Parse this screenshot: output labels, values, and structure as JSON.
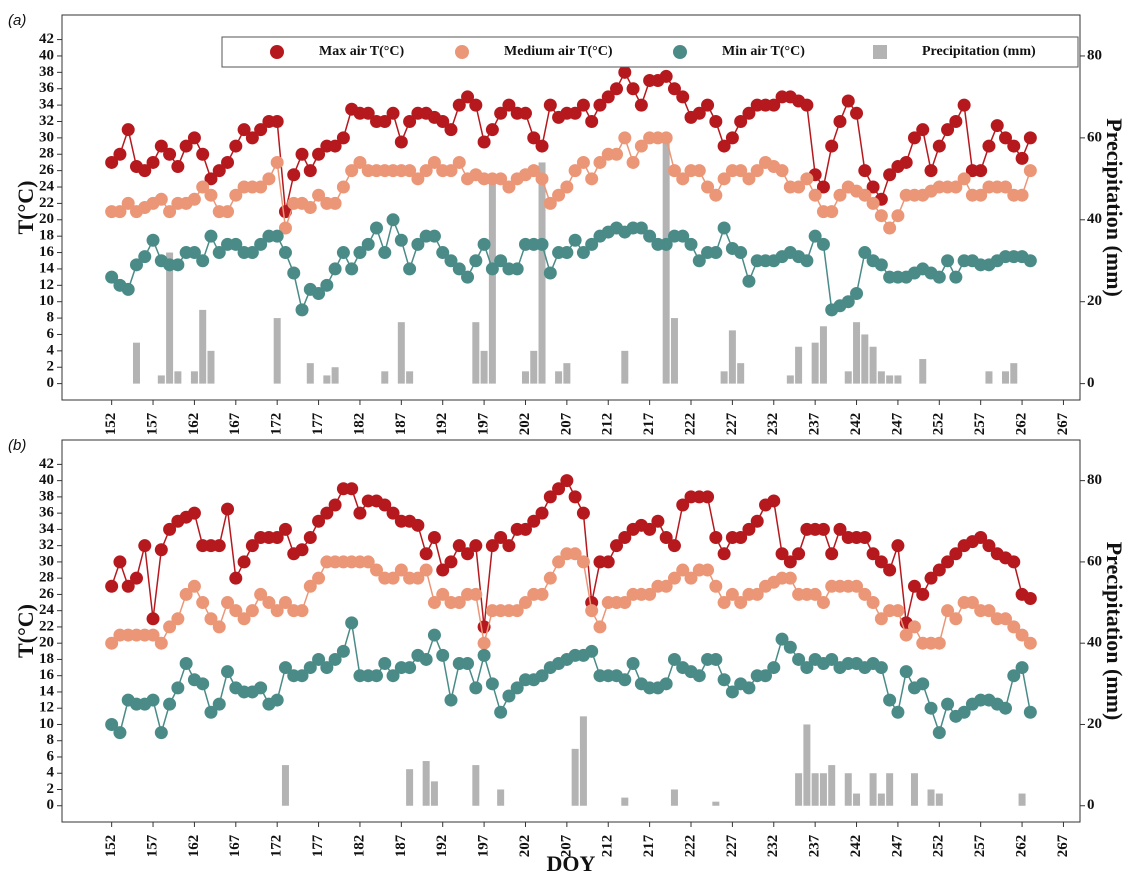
{
  "chart_data": [
    {
      "type": "combo",
      "label": "(a)",
      "ylabel": "T(°C)",
      "y2label": "Precipitation (mm)",
      "xlim": [
        146,
        269
      ],
      "xticks": [
        152,
        157,
        162,
        167,
        172,
        177,
        182,
        187,
        192,
        197,
        202,
        207,
        212,
        217,
        222,
        227,
        232,
        237,
        242,
        247,
        252,
        257,
        262,
        267
      ],
      "ylim": [
        -2,
        45
      ],
      "yticks": [
        0,
        2,
        4,
        6,
        8,
        10,
        12,
        14,
        16,
        18,
        20,
        22,
        24,
        26,
        28,
        30,
        32,
        34,
        36,
        38,
        40,
        42
      ],
      "y2lim": [
        -4,
        90
      ],
      "y2ticks": [
        0,
        20,
        40,
        60,
        80
      ],
      "legend": "top-right",
      "x": [
        152,
        153,
        154,
        155,
        156,
        157,
        158,
        159,
        160,
        161,
        162,
        163,
        164,
        165,
        166,
        167,
        168,
        169,
        170,
        171,
        172,
        173,
        174,
        175,
        176,
        177,
        178,
        179,
        180,
        181,
        182,
        183,
        184,
        185,
        186,
        187,
        188,
        189,
        190,
        191,
        192,
        193,
        194,
        195,
        196,
        197,
        198,
        199,
        200,
        201,
        202,
        203,
        204,
        205,
        206,
        207,
        208,
        209,
        210,
        211,
        212,
        213,
        214,
        215,
        216,
        217,
        218,
        219,
        220,
        221,
        222,
        223,
        224,
        225,
        226,
        227,
        228,
        229,
        230,
        231,
        232,
        233,
        234,
        235,
        236,
        237,
        238,
        239,
        240,
        241,
        242,
        243,
        244,
        245,
        246,
        247,
        248,
        249,
        250,
        251,
        252,
        253,
        254,
        255,
        256,
        257,
        258,
        259,
        260,
        261,
        262,
        263
      ],
      "series": [
        {
          "name": "Max air T(°C)",
          "color": "#b5191e",
          "values": [
            27,
            28,
            31,
            26.5,
            26,
            27,
            29,
            28,
            26.5,
            29,
            30,
            28,
            25,
            26,
            27,
            29,
            31,
            30,
            31,
            32,
            32,
            21,
            25.5,
            28,
            26,
            28,
            29,
            29,
            30,
            33.5,
            33,
            33,
            32,
            32,
            33,
            29.5,
            32,
            33,
            33,
            32.5,
            32,
            31,
            34,
            35,
            34,
            29.5,
            31,
            33,
            34,
            33,
            33,
            30,
            29,
            34,
            32.5,
            33,
            33,
            34,
            32,
            34,
            35,
            36,
            38,
            36,
            34,
            37,
            37,
            37.5,
            36,
            35,
            32.5,
            33,
            34,
            32,
            29,
            30,
            32,
            33,
            34,
            34,
            34,
            35,
            35,
            34.5,
            34,
            25.5,
            24,
            29,
            32,
            34.5,
            33,
            26,
            24,
            22.5,
            25.5,
            26.5,
            27,
            30,
            31,
            26,
            29,
            31,
            32,
            34,
            26,
            26,
            29,
            31.5,
            30,
            29,
            27.5,
            30
          ]
        },
        {
          "name": "Medium air T(°C)",
          "color": "#eb9677",
          "values": [
            21,
            21,
            22,
            21,
            21.5,
            22,
            22.5,
            21,
            22,
            22,
            22.5,
            24,
            23,
            21,
            21,
            23,
            24,
            24,
            24,
            25,
            27,
            19,
            22,
            22,
            21.5,
            23,
            22,
            22,
            24,
            26,
            27,
            26,
            26,
            26,
            26,
            26,
            26,
            25,
            26,
            27,
            26,
            26,
            27,
            25,
            25.5,
            25,
            25,
            25,
            24,
            25,
            25.5,
            26,
            25,
            22,
            23,
            24,
            26,
            27,
            25,
            27,
            28,
            28,
            30,
            27,
            29,
            30,
            30,
            30,
            26,
            25,
            26,
            26,
            24,
            23,
            25,
            26,
            26,
            25,
            26,
            27,
            26.5,
            26,
            24,
            24,
            25,
            23,
            21,
            21,
            23,
            24,
            23.5,
            23,
            22,
            20.5,
            19,
            20.5,
            23,
            23,
            23,
            23.5,
            24,
            24,
            24,
            25,
            23,
            23,
            24,
            24,
            24,
            23,
            23,
            26
          ]
        },
        {
          "name": "Min air T(°C)",
          "color": "#4a8b88",
          "values": [
            13,
            12,
            11.5,
            14.5,
            15.5,
            17.5,
            15,
            14.5,
            14.5,
            16,
            16,
            15,
            18,
            16,
            17,
            17,
            16,
            16,
            17,
            18,
            18,
            16,
            13.5,
            9,
            11.5,
            11,
            12,
            14,
            16,
            14,
            16,
            17,
            19,
            16,
            20,
            17.5,
            14,
            17,
            18,
            18,
            16,
            15,
            14,
            13,
            15,
            17,
            14,
            15,
            14,
            14,
            17,
            17,
            17,
            13.5,
            16,
            16,
            17.5,
            16,
            17,
            18,
            18.5,
            19,
            18.5,
            19,
            19,
            18,
            17,
            17,
            18,
            18,
            17,
            15,
            16,
            16,
            19,
            16.5,
            16,
            12.5,
            15,
            15,
            15,
            15.5,
            16,
            15.5,
            15,
            18,
            17,
            9,
            9.5,
            10,
            11,
            16,
            15,
            14.5,
            13,
            13,
            13,
            13.5,
            14,
            13.5,
            13,
            15,
            13,
            15,
            15,
            14.5,
            14.5,
            15,
            15.5,
            15.5,
            15.5,
            15
          ]
        },
        {
          "name": "Precipitation (mm)",
          "color": "#b3b3b3",
          "axis": "y2",
          "x": [
            155,
            158,
            159,
            160,
            162,
            163,
            164,
            172,
            176,
            178,
            179,
            185,
            187,
            188,
            196,
            197,
            198,
            202,
            203,
            204,
            206,
            207,
            214,
            219,
            220,
            226,
            227,
            228,
            234,
            235,
            237,
            238,
            241,
            242,
            243,
            244,
            245,
            246,
            247,
            250,
            258,
            260,
            261
          ],
          "values": [
            10,
            2,
            32,
            3,
            3,
            18,
            8,
            16,
            5,
            2,
            4,
            3,
            15,
            3,
            15,
            8,
            50,
            3,
            8,
            54,
            3,
            5,
            8,
            60,
            16,
            3,
            13,
            5,
            2,
            9,
            10,
            14,
            3,
            15,
            12,
            9,
            3,
            2,
            2,
            6,
            3,
            3,
            5
          ]
        }
      ]
    },
    {
      "type": "combo",
      "label": "(b)",
      "ylabel": "T(°C)",
      "y2label": "Precipitation (mm)",
      "xlabel": "DOY",
      "xlim": [
        146,
        269
      ],
      "xticks": [
        152,
        157,
        162,
        167,
        172,
        177,
        182,
        187,
        192,
        197,
        202,
        207,
        212,
        217,
        222,
        227,
        232,
        237,
        242,
        247,
        252,
        257,
        262,
        267
      ],
      "ylim": [
        -2,
        45
      ],
      "yticks": [
        0,
        2,
        4,
        6,
        8,
        10,
        12,
        14,
        16,
        18,
        20,
        22,
        24,
        26,
        28,
        30,
        32,
        34,
        36,
        38,
        40,
        42
      ],
      "y2lim": [
        -4,
        90
      ],
      "y2ticks": [
        0,
        20,
        40,
        60,
        80
      ],
      "x": [
        152,
        153,
        154,
        155,
        156,
        157,
        158,
        159,
        160,
        161,
        162,
        163,
        164,
        165,
        166,
        167,
        168,
        169,
        170,
        171,
        172,
        173,
        174,
        175,
        176,
        177,
        178,
        179,
        180,
        181,
        182,
        183,
        184,
        185,
        186,
        187,
        188,
        189,
        190,
        191,
        192,
        193,
        194,
        195,
        196,
        197,
        198,
        199,
        200,
        201,
        202,
        203,
        204,
        205,
        206,
        207,
        208,
        209,
        210,
        211,
        212,
        213,
        214,
        215,
        216,
        217,
        218,
        219,
        220,
        221,
        222,
        223,
        224,
        225,
        226,
        227,
        228,
        229,
        230,
        231,
        232,
        233,
        234,
        235,
        236,
        237,
        238,
        239,
        240,
        241,
        242,
        243,
        244,
        245,
        246,
        247,
        248,
        249,
        250,
        251,
        252,
        253,
        254,
        255,
        256,
        257,
        258,
        259,
        260,
        261,
        262,
        263
      ],
      "series": [
        {
          "color": "#b5191e",
          "values": [
            27,
            30,
            27,
            28,
            32,
            23,
            31.5,
            34,
            35,
            35.5,
            36,
            32,
            32,
            32,
            36.5,
            28,
            30,
            32,
            33,
            33,
            33,
            34,
            31,
            31.5,
            33,
            35,
            36,
            37,
            39,
            39,
            36,
            37.5,
            37.5,
            37,
            36,
            35,
            35,
            34.5,
            31,
            33,
            29,
            30,
            32,
            31,
            32,
            22,
            32,
            33,
            32,
            34,
            34,
            35,
            36,
            38,
            39,
            40,
            38,
            36,
            25,
            30,
            30,
            32,
            33,
            34,
            34.5,
            34,
            35,
            33,
            32,
            37,
            38,
            38,
            38,
            33,
            31,
            33,
            33,
            34,
            35,
            37,
            37.5,
            31,
            30,
            31,
            34,
            34,
            34,
            31,
            34,
            33,
            33,
            33,
            31,
            30,
            29,
            32,
            22.5,
            27,
            26,
            28,
            29,
            30,
            31,
            32,
            32.5,
            33,
            32,
            31,
            30.5,
            30,
            26,
            25.5
          ]
        },
        {
          "color": "#eb9677",
          "values": [
            20,
            21,
            21,
            21,
            21,
            21,
            20,
            22,
            23,
            26,
            27,
            25,
            23,
            22,
            25,
            24,
            23,
            24,
            26,
            25,
            24,
            25,
            24,
            24,
            27,
            28,
            30,
            30,
            30,
            30,
            30,
            30,
            29,
            28,
            28,
            29,
            28,
            28,
            29,
            25,
            26,
            25,
            25,
            26,
            26,
            20,
            24,
            24,
            24,
            24,
            25,
            26,
            26,
            28,
            30,
            31,
            31,
            30,
            24,
            22,
            25,
            25,
            25,
            26,
            26,
            26,
            27,
            27,
            28,
            29,
            28,
            29,
            29,
            27,
            25,
            26,
            25,
            26,
            26,
            27,
            27.5,
            28,
            28,
            26,
            26,
            26,
            25,
            27,
            27,
            27,
            27,
            26,
            25,
            23,
            24,
            24,
            21,
            22,
            20,
            20,
            20,
            24,
            23,
            25,
            25,
            24,
            24,
            23,
            23,
            22,
            21,
            20
          ]
        },
        {
          "color": "#4a8b88",
          "values": [
            10,
            9,
            13,
            12.5,
            12.5,
            13,
            9,
            12.5,
            14.5,
            17.5,
            15.5,
            15,
            11.5,
            12.5,
            16.5,
            14.5,
            14,
            14,
            14.5,
            12.5,
            13,
            17,
            16,
            16,
            17,
            18,
            17,
            18,
            19,
            22.5,
            16,
            16,
            16,
            17.5,
            16,
            17,
            17,
            18.5,
            18,
            21,
            18.5,
            13,
            17.5,
            17.5,
            14.5,
            18.5,
            15,
            11.5,
            13.5,
            14.5,
            15.5,
            15.5,
            16,
            17,
            17.5,
            18,
            18.5,
            18.5,
            19,
            16,
            16,
            16,
            15.5,
            17.5,
            15,
            14.5,
            14.5,
            15,
            18,
            17,
            16.5,
            16,
            18,
            18,
            15.5,
            14,
            15,
            14.5,
            16,
            16,
            17,
            20.5,
            19.5,
            18,
            17,
            18,
            17.5,
            18,
            17,
            17.5,
            17.5,
            17,
            17.5,
            17,
            13,
            11.5,
            16.5,
            14.5,
            15,
            12,
            9,
            12.5,
            11,
            11.5,
            12.5,
            13,
            13,
            12.5,
            12,
            16,
            17,
            11.5
          ]
        },
        {
          "color": "#b3b3b3",
          "axis": "y2",
          "x": [
            173,
            188,
            190,
            191,
            196,
            199,
            208,
            209,
            214,
            220,
            225,
            235,
            236,
            237,
            238,
            239,
            241,
            242,
            244,
            245,
            246,
            249,
            251,
            252,
            262
          ],
          "values": [
            10,
            9,
            11,
            6,
            10,
            4,
            14,
            22,
            2,
            4,
            1,
            8,
            20,
            8,
            8,
            10,
            8,
            3,
            8,
            3,
            8,
            8,
            4,
            3,
            3
          ]
        }
      ]
    }
  ]
}
